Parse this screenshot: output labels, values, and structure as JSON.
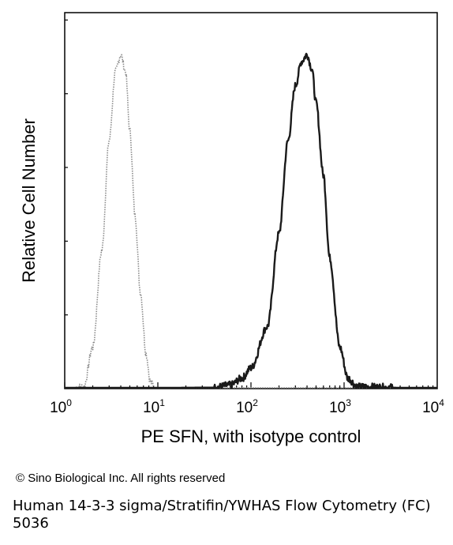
{
  "chart_data": {
    "type": "line",
    "title": "",
    "xlabel": "PE SFN, with isotype control",
    "ylabel": "Relative Cell Number",
    "x_scale": "log",
    "xlim": [
      1,
      10000
    ],
    "x_ticks": [
      {
        "base": "10",
        "exp": "0"
      },
      {
        "base": "10",
        "exp": "1"
      },
      {
        "base": "10",
        "exp": "2"
      },
      {
        "base": "10",
        "exp": "3"
      },
      {
        "base": "10",
        "exp": "4"
      }
    ],
    "ylim": [
      0,
      100
    ],
    "grid": false,
    "legend": "none",
    "series": [
      {
        "color": "#8a8a8a",
        "style": "dotted",
        "x": [
          1,
          1.6,
          2.0,
          2.5,
          3.0,
          3.5,
          4.0,
          4.5,
          5.0,
          5.7,
          6.5,
          7.5,
          8.3,
          9.5,
          10000
        ],
        "y": [
          0,
          0.5,
          12,
          40,
          72,
          92,
          97,
          92,
          75,
          50,
          28,
          10,
          2,
          0,
          0
        ]
      },
      {
        "color": "#1a1a1a",
        "style": "solid",
        "x": [
          1,
          40,
          60,
          80,
          100,
          150,
          200,
          250,
          300,
          350,
          400,
          450,
          500,
          600,
          700,
          900,
          1100,
          1400,
          10000
        ],
        "y": [
          0,
          0.3,
          1,
          3,
          6,
          18,
          45,
          72,
          88,
          95,
          97,
          93,
          83,
          62,
          38,
          12,
          3,
          0.5,
          0
        ]
      }
    ]
  },
  "copyright": "© Sino Biological Inc. All rights reserved",
  "caption": "Human 14-3-3 sigma/Stratifin/YWHAS Flow Cytometry (FC) 5036"
}
